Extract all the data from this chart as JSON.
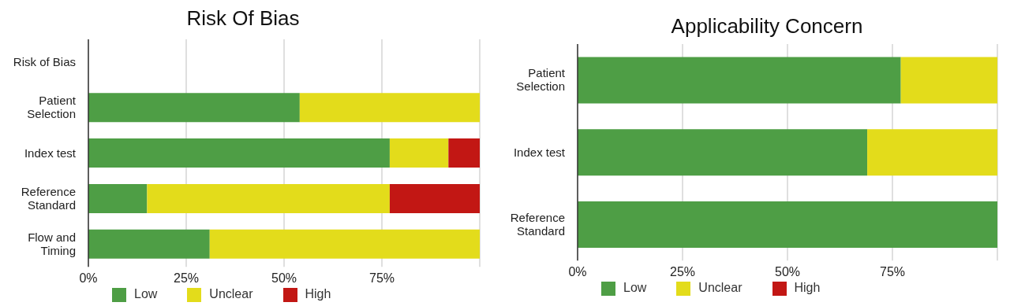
{
  "chart_data": [
    {
      "type": "bar",
      "title": "Risk Of Bias",
      "orientation": "horizontal",
      "stacked": true,
      "categories": [
        "Risk of Bias",
        "Patient Selection",
        "Index test",
        "Reference Standard",
        "Flow and Timing"
      ],
      "series": [
        {
          "name": "Low",
          "color": "#4e9e45",
          "values": [
            null,
            54,
            77,
            15,
            31
          ]
        },
        {
          "name": "Unclear",
          "color": "#e3dc1b",
          "values": [
            null,
            46,
            15,
            62,
            69
          ]
        },
        {
          "name": "High",
          "color": "#c21714",
          "values": [
            null,
            0,
            8,
            23,
            0
          ]
        }
      ],
      "xlim": [
        0,
        100
      ],
      "xticks": [
        {
          "value": 0,
          "label": "0%"
        },
        {
          "value": 25,
          "label": "25%"
        },
        {
          "value": 50,
          "label": "50%"
        },
        {
          "value": 75,
          "label": "75%"
        },
        {
          "value": 100,
          "label": null
        }
      ],
      "grid": "x",
      "legend": "bottom"
    },
    {
      "type": "bar",
      "title": "Applicability Concern",
      "orientation": "horizontal",
      "stacked": true,
      "categories": [
        "Patient Selection",
        "Index test",
        "Reference Standard"
      ],
      "series": [
        {
          "name": "Low",
          "color": "#4e9e45",
          "values": [
            77,
            69,
            100
          ]
        },
        {
          "name": "Unclear",
          "color": "#e3dc1b",
          "values": [
            23,
            31,
            0
          ]
        },
        {
          "name": "High",
          "color": "#c21714",
          "values": [
            0,
            0,
            0
          ]
        }
      ],
      "xlim": [
        0,
        100
      ],
      "xticks": [
        {
          "value": 0,
          "label": "0%"
        },
        {
          "value": 25,
          "label": "25%"
        },
        {
          "value": 50,
          "label": "50%"
        },
        {
          "value": 75,
          "label": "75%"
        },
        {
          "value": 100,
          "label": null
        }
      ],
      "grid": "x",
      "legend": "bottom"
    }
  ]
}
